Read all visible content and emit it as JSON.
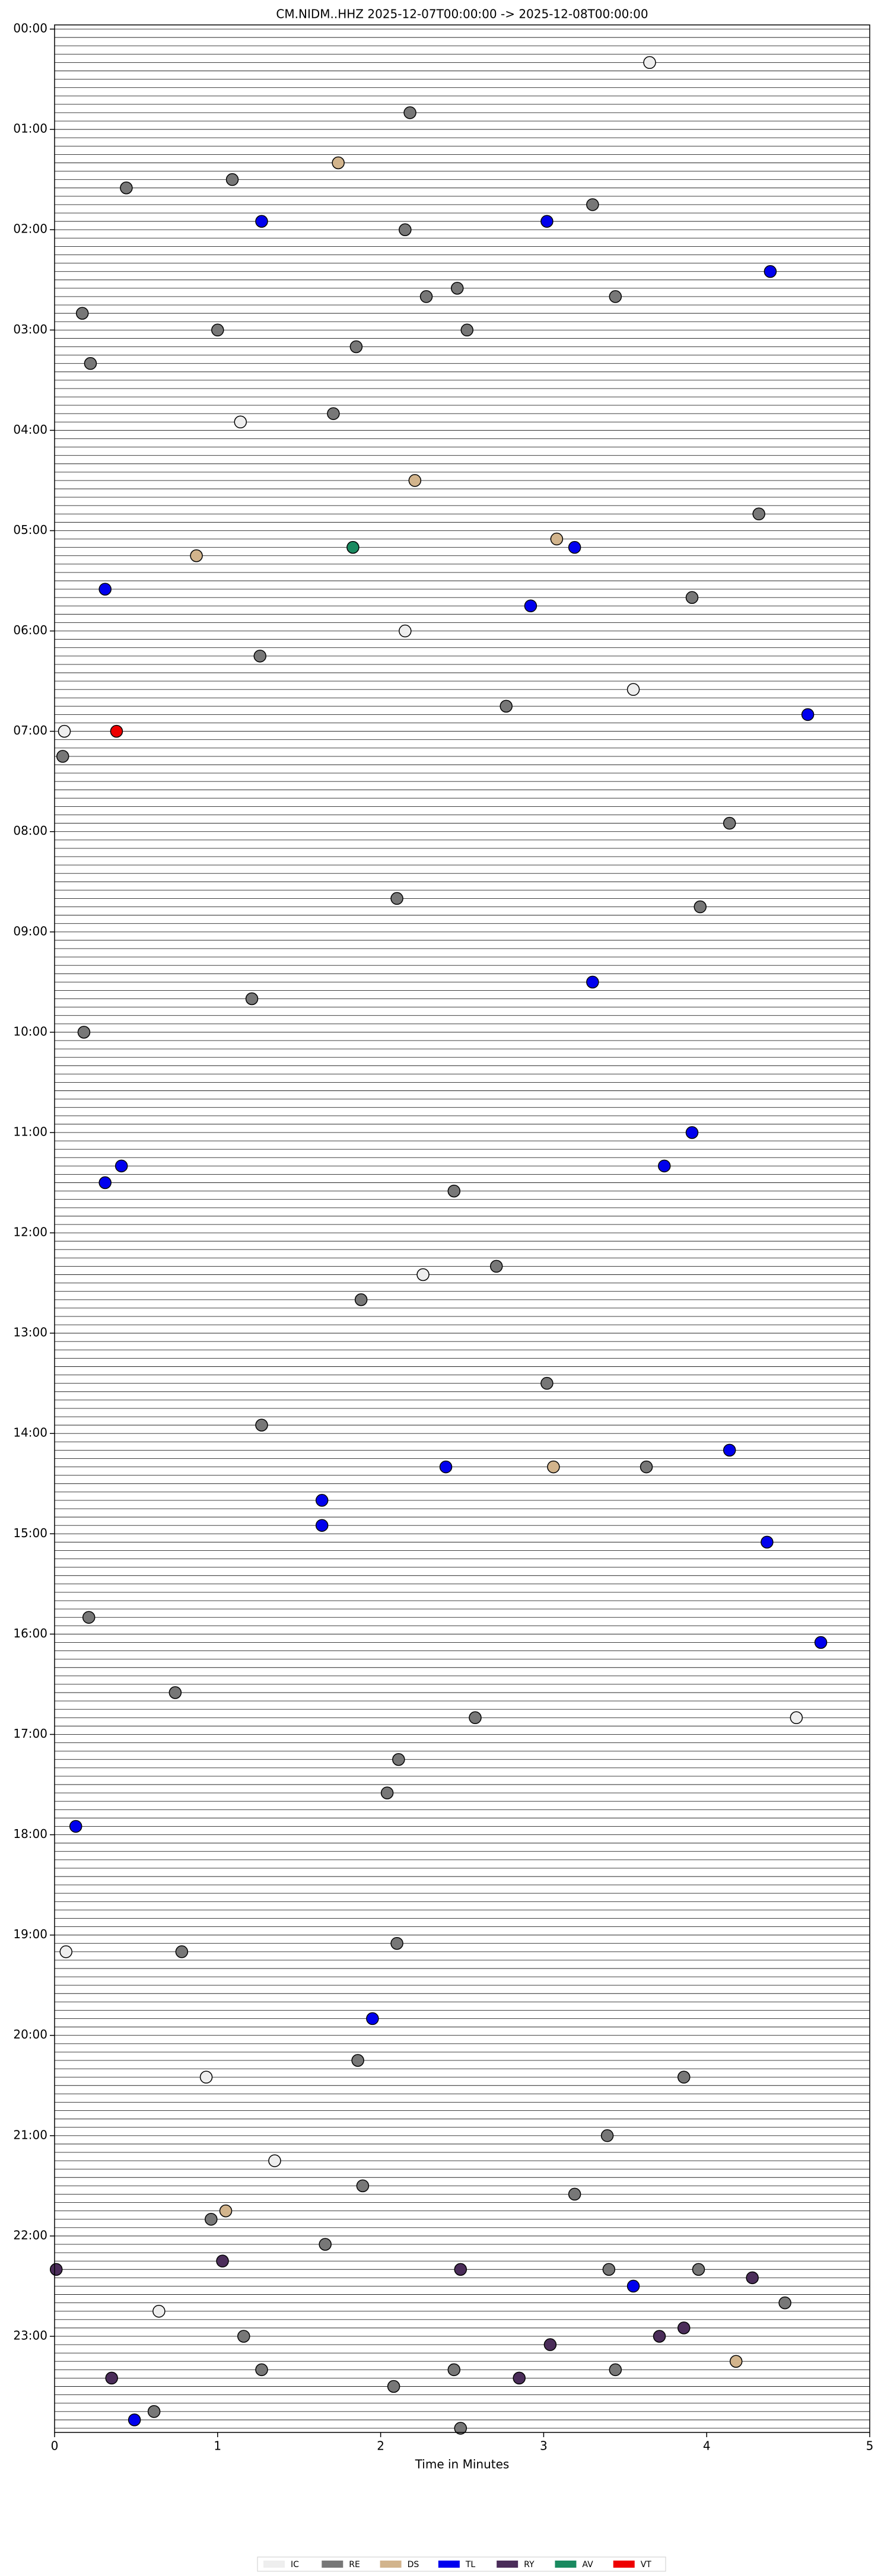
{
  "chart_data": {
    "type": "helicorder",
    "title": "CM.NIDM..HHZ  2025-12-07T00:00:00 -> 2025-12-08T00:00:00",
    "xlabel": "Time in Minutes",
    "xlim": [
      0,
      5
    ],
    "xticks": [
      0,
      1,
      2,
      3,
      4,
      5
    ],
    "ylim": [
      -2.5,
      1437.5
    ],
    "yticks": [
      {
        "value": 0,
        "label": "00:00"
      },
      {
        "value": 60,
        "label": "01:00"
      },
      {
        "value": 120,
        "label": "02:00"
      },
      {
        "value": 180,
        "label": "03:00"
      },
      {
        "value": 240,
        "label": "04:00"
      },
      {
        "value": 300,
        "label": "05:00"
      },
      {
        "value": 360,
        "label": "06:00"
      },
      {
        "value": 420,
        "label": "07:00"
      },
      {
        "value": 480,
        "label": "08:00"
      },
      {
        "value": 540,
        "label": "09:00"
      },
      {
        "value": 600,
        "label": "10:00"
      },
      {
        "value": 660,
        "label": "11:00"
      },
      {
        "value": 720,
        "label": "12:00"
      },
      {
        "value": 780,
        "label": "13:00"
      },
      {
        "value": 840,
        "label": "14:00"
      },
      {
        "value": 900,
        "label": "15:00"
      },
      {
        "value": 960,
        "label": "16:00"
      },
      {
        "value": 1020,
        "label": "17:00"
      },
      {
        "value": 1080,
        "label": "18:00"
      },
      {
        "value": 1140,
        "label": "19:00"
      },
      {
        "value": 1200,
        "label": "20:00"
      },
      {
        "value": 1260,
        "label": "21:00"
      },
      {
        "value": 1320,
        "label": "22:00"
      },
      {
        "value": 1380,
        "label": "23:00"
      }
    ],
    "series": [
      {
        "name": "IC",
        "color": "#eeeeee",
        "x": [
          3.65,
          1.14,
          2.15,
          3.55,
          0.06,
          2.26,
          4.55,
          0.07,
          0.93,
          1.35,
          0.64
        ],
        "y": [
          20,
          235,
          360,
          395,
          420,
          745,
          1010,
          1150,
          1225,
          1275,
          1365
        ]
      },
      {
        "name": "RE",
        "color": "#777777",
        "x": [
          2.18,
          1.09,
          0.44,
          3.3,
          2.15,
          2.47,
          2.28,
          3.44,
          0.17,
          1.0,
          2.53,
          1.85,
          0.22,
          1.71,
          4.32,
          3.91,
          1.26,
          2.77,
          0.05,
          4.14,
          2.1,
          3.96,
          1.21,
          0.18,
          2.45,
          2.71,
          1.88,
          3.02,
          1.27,
          3.63,
          0.21,
          0.74,
          2.58,
          2.11,
          2.04,
          2.1,
          0.78,
          1.86,
          3.86,
          3.39,
          1.89,
          3.19,
          0.96,
          1.66,
          3.4,
          3.95,
          4.48,
          1.16,
          1.27,
          2.45,
          3.44,
          2.08,
          0.61,
          2.49
        ],
        "y": [
          50,
          90,
          95,
          105,
          120,
          155,
          160,
          160,
          170,
          180,
          180,
          190,
          200,
          230,
          290,
          340,
          375,
          405,
          435,
          475,
          520,
          525,
          580,
          600,
          695,
          740,
          760,
          810,
          835,
          860,
          950,
          995,
          1010,
          1035,
          1055,
          1145,
          1150,
          1215,
          1225,
          1260,
          1290,
          1295,
          1310,
          1325,
          1340,
          1340,
          1360,
          1380,
          1400,
          1400,
          1400,
          1410,
          1425,
          1435
        ]
      },
      {
        "name": "DS",
        "color": "#d2b48c",
        "x": [
          1.74,
          2.21,
          3.08,
          0.87,
          3.06,
          1.05,
          4.18
        ],
        "y": [
          80,
          270,
          305,
          315,
          860,
          1305,
          1395
        ]
      },
      {
        "name": "TL",
        "color": "#0000ee",
        "x": [
          1.27,
          3.02,
          4.39,
          3.19,
          0.31,
          2.92,
          4.62,
          3.3,
          3.91,
          0.41,
          3.74,
          0.31,
          4.14,
          2.4,
          1.64,
          1.64,
          4.37,
          4.7,
          0.13,
          1.95,
          3.55,
          0.49
        ],
        "y": [
          115,
          115,
          145,
          310,
          335,
          345,
          410,
          570,
          660,
          680,
          680,
          690,
          850,
          860,
          880,
          895,
          905,
          965,
          1075,
          1190,
          1350,
          1430
        ]
      },
      {
        "name": "RY",
        "color": "#4b2d5a",
        "x": [
          0.01,
          1.03,
          2.49,
          4.28,
          3.86,
          3.71,
          3.04,
          0.35,
          2.85
        ],
        "y": [
          1340,
          1335,
          1340,
          1345,
          1375,
          1380,
          1385,
          1405,
          1405
        ]
      },
      {
        "name": "AV",
        "color": "#1a8a60",
        "x": [
          1.83
        ],
        "y": [
          310
        ]
      },
      {
        "name": "VT",
        "color": "#ee0000",
        "x": [
          0.38
        ],
        "y": [
          420
        ]
      }
    ]
  }
}
